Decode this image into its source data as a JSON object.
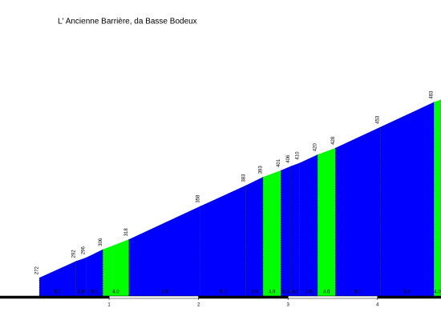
{
  "chart_data": {
    "type": "profile",
    "title": "L' Ancienne Barrière, da Basse Bodeux",
    "x": [
      0.22,
      0.63,
      0.74,
      0.93,
      1.22,
      2.02,
      2.53,
      2.72,
      2.92,
      3.03,
      3.13,
      3.33,
      3.53,
      4.03,
      4.63,
      4.71
    ],
    "values": [
      272,
      292,
      296,
      306,
      318,
      358,
      383,
      393,
      401,
      406,
      410,
      420,
      428,
      453,
      483,
      486
    ],
    "value_labels": [
      "272",
      "292",
      "296",
      "306",
      "318",
      "358",
      "383",
      "393",
      "401",
      "406",
      "410",
      "420",
      "428",
      "453",
      "483",
      null
    ],
    "segment_colors": [
      "#0000ff",
      "#0000ff",
      "#0000ff",
      "#00ff00",
      "#0000ff",
      "#0000ff",
      "#0000ff",
      "#00ff00",
      "#0000ff",
      "#0000ff",
      "#0000ff",
      "#00ff00",
      "#0000ff",
      "#0000ff",
      "#00ff00"
    ],
    "segment_labels": [
      "5.0",
      "4.0",
      "5.0",
      "4.0",
      "5.0",
      "5.0",
      "5.0",
      "4.0",
      "5.0",
      "4.0",
      "5.0",
      "4.0",
      "5.0",
      "5.0",
      "4.0"
    ],
    "xlim": [
      -0.22,
      4.71
    ],
    "xticks": [
      1,
      2,
      3,
      4
    ],
    "ylim": [
      250,
      600
    ]
  }
}
